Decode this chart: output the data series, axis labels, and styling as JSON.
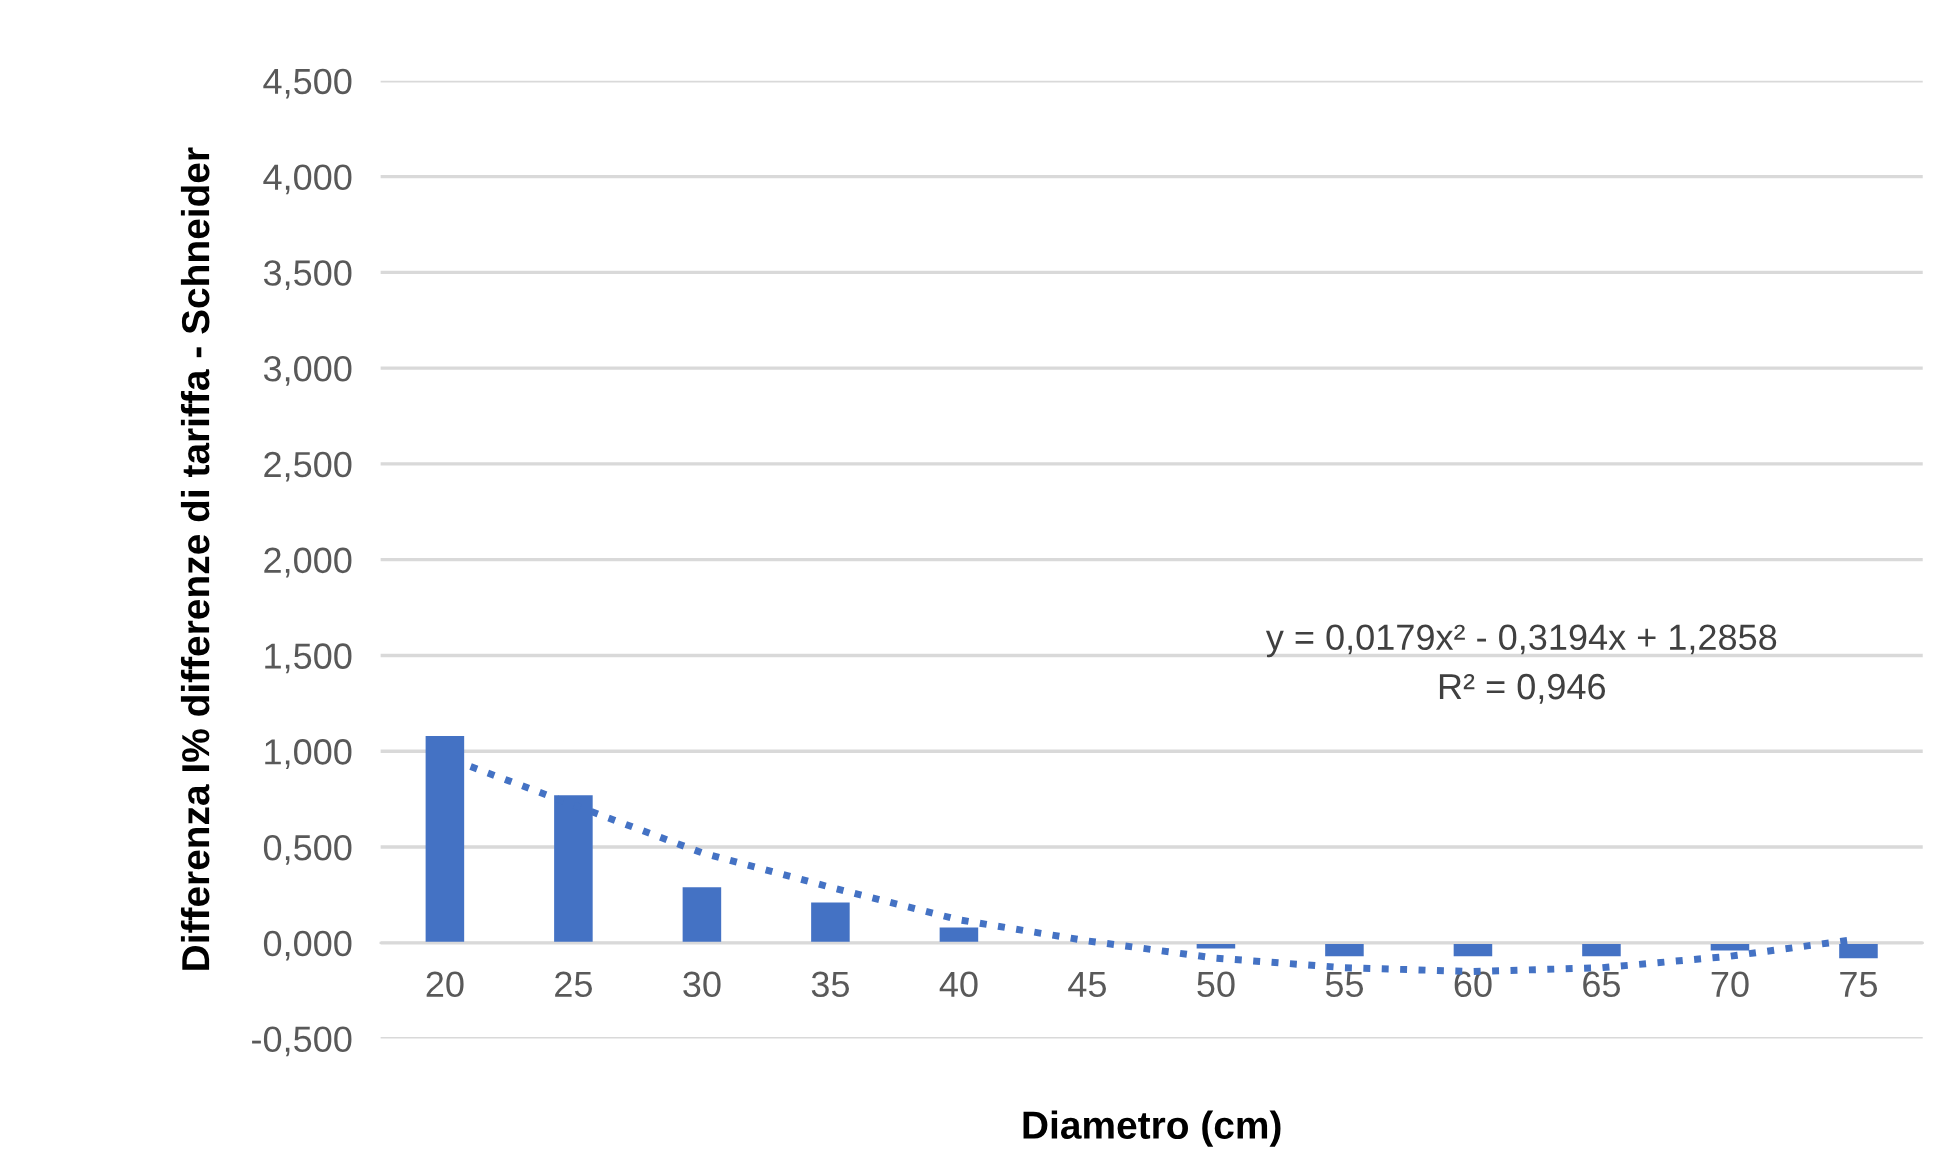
{
  "chart_data": {
    "type": "bar",
    "xlabel": "Diametro (cm)",
    "ylabel": "Differenza I% differenze di tariffa - Schneider",
    "x": [
      20,
      25,
      30,
      35,
      40,
      45,
      50,
      55,
      60,
      65,
      70,
      75
    ],
    "series": [
      {
        "color": "#4472c4",
        "values": [
          1.08,
          0.77,
          0.29,
          0.21,
          0.08,
          null,
          -0.03,
          -0.07,
          -0.07,
          -0.07,
          -0.04,
          -0.08
        ]
      },
      {
        "type": "line",
        "color": "#4472c4",
        "line_style": "dotted",
        "x": [
          21,
          25,
          30,
          35,
          40,
          45,
          50,
          55,
          60,
          65,
          70,
          75
        ],
        "values": [
          0.92,
          0.72,
          0.47,
          0.29,
          0.12,
          0.01,
          -0.08,
          -0.13,
          -0.15,
          -0.13,
          -0.07,
          0.02
        ]
      }
    ],
    "xlim": [
      17.5,
      77.5
    ],
    "xticks": [
      20,
      25,
      30,
      35,
      40,
      45,
      50,
      55,
      60,
      65,
      70,
      75
    ],
    "ylim": [
      -0.5,
      4.5
    ],
    "yticks": [
      {
        "value": -0.5,
        "label": "-0,500"
      },
      {
        "value": 0,
        "label": "0,000"
      },
      {
        "value": 0.5,
        "label": "0,500"
      },
      {
        "value": 1,
        "label": "1,000"
      },
      {
        "value": 1.5,
        "label": "1,500"
      },
      {
        "value": 2,
        "label": "2,000"
      },
      {
        "value": 2.5,
        "label": "2,500"
      },
      {
        "value": 3,
        "label": "3,000"
      },
      {
        "value": 3.5,
        "label": "3,500"
      },
      {
        "value": 4,
        "label": "4,000"
      },
      {
        "value": 4.5,
        "label": "4,500"
      }
    ],
    "grid": "y",
    "annotations": [
      "y = 0,0179x² - 0,3194x + 1,2858\nR² = 0,946"
    ]
  }
}
